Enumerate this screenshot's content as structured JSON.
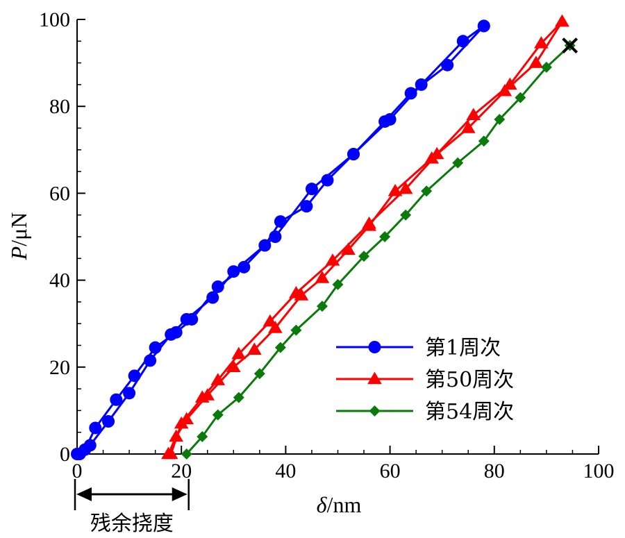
{
  "chart_data": {
    "type": "line",
    "xlabel_italic": "δ",
    "xlabel_unit": "/nm",
    "ylabel_italic": "P",
    "ylabel_unit": "/μN",
    "xlim": [
      0,
      100
    ],
    "ylim": [
      0,
      100
    ],
    "xticks": [
      "0",
      "20",
      "40",
      "60",
      "80",
      "100"
    ],
    "yticks": [
      "0",
      "20",
      "40",
      "60",
      "80",
      "100"
    ],
    "grid": false,
    "legend_position": "bottom-right",
    "annotation": {
      "label": "残余挠度",
      "x_start": 0,
      "x_end": 21
    },
    "failure_marker": {
      "x": 94.5,
      "y": 94
    },
    "series": [
      {
        "name": "第1周次",
        "color": "#0000ff",
        "marker": "circle",
        "loading": [
          [
            0,
            0
          ],
          [
            1.5,
            1
          ],
          [
            3.5,
            6
          ],
          [
            7.5,
            12.5
          ],
          [
            11,
            18
          ],
          [
            15,
            24.5
          ],
          [
            19,
            28
          ],
          [
            22,
            31
          ],
          [
            27,
            38.5
          ],
          [
            32,
            43
          ],
          [
            36,
            48
          ],
          [
            39,
            53.5
          ],
          [
            44,
            57
          ],
          [
            48,
            63
          ],
          [
            53,
            69
          ],
          [
            59,
            76.5
          ],
          [
            64,
            83
          ],
          [
            71,
            89.5
          ],
          [
            78,
            98.5
          ]
        ],
        "unloading": [
          [
            78,
            98.5
          ],
          [
            74,
            95
          ],
          [
            66,
            85
          ],
          [
            60,
            77
          ],
          [
            53,
            69
          ],
          [
            45,
            61
          ],
          [
            38,
            50
          ],
          [
            30,
            42
          ],
          [
            26,
            36
          ],
          [
            21,
            31
          ],
          [
            18,
            27.5
          ],
          [
            14,
            21.5
          ],
          [
            10,
            14
          ],
          [
            6,
            7.5
          ],
          [
            2.5,
            2
          ],
          [
            0.5,
            0
          ]
        ]
      },
      {
        "name": "第50周次",
        "color": "#ff0000",
        "marker": "triangle",
        "loading": [
          [
            17.5,
            0
          ],
          [
            19,
            4
          ],
          [
            21,
            8
          ],
          [
            25,
            13.5
          ],
          [
            30,
            20
          ],
          [
            34,
            24
          ],
          [
            38,
            29
          ],
          [
            43,
            36.5
          ],
          [
            47,
            40.5
          ],
          [
            52,
            47
          ],
          [
            56,
            52.5
          ],
          [
            61,
            60.5
          ],
          [
            68,
            68
          ],
          [
            75,
            75
          ],
          [
            82,
            83.5
          ],
          [
            88,
            90
          ],
          [
            93,
            99.5
          ]
        ],
        "unloading": [
          [
            93,
            99.5
          ],
          [
            89,
            94.5
          ],
          [
            83,
            85
          ],
          [
            76,
            78
          ],
          [
            69,
            69
          ],
          [
            63,
            61
          ],
          [
            56,
            53
          ],
          [
            49,
            44.5
          ],
          [
            42,
            37
          ],
          [
            37,
            30.5
          ],
          [
            31,
            23
          ],
          [
            27,
            17
          ],
          [
            24,
            13
          ],
          [
            20,
            7
          ],
          [
            18,
            0
          ]
        ]
      },
      {
        "name": "第54周次",
        "color": "#0a7a0a",
        "marker": "diamond",
        "loading": [
          [
            21,
            0
          ],
          [
            24,
            4
          ],
          [
            27,
            9
          ],
          [
            31,
            13
          ],
          [
            35,
            18.5
          ],
          [
            39,
            24.5
          ],
          [
            42,
            28.5
          ],
          [
            47,
            34
          ],
          [
            50,
            39
          ],
          [
            55,
            45.5
          ],
          [
            59,
            50
          ],
          [
            63,
            55
          ],
          [
            67,
            60.5
          ],
          [
            73,
            67
          ],
          [
            78,
            72
          ],
          [
            81,
            77
          ],
          [
            85,
            82
          ],
          [
            90,
            89
          ],
          [
            94.5,
            94
          ]
        ]
      }
    ]
  }
}
